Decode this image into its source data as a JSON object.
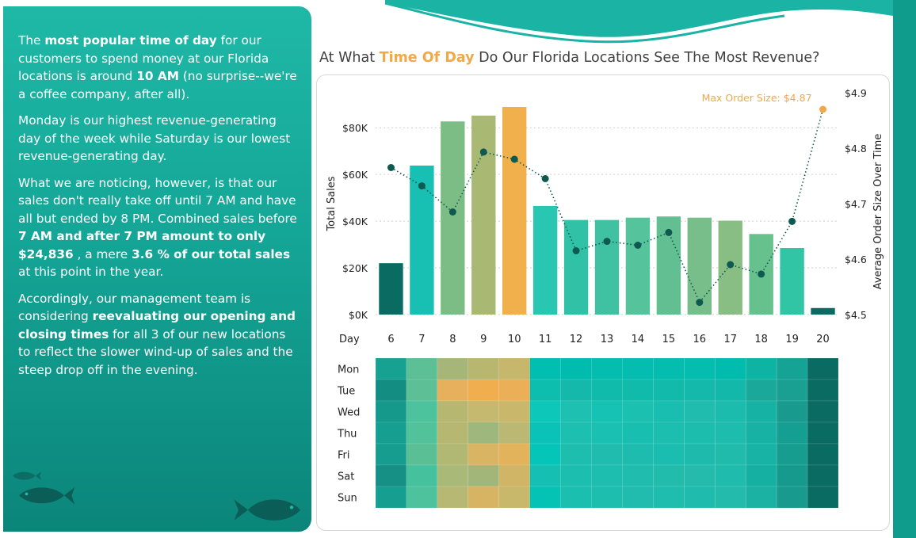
{
  "colors": {
    "panel_top": "#1fb8a6",
    "panel_bottom": "#0b857a",
    "highlight": "#f0a948",
    "teal_dark": "#0a6b63",
    "line": "#0f5a50"
  },
  "icons": [
    "fish-icon",
    "fish-icon",
    "fish-icon"
  ],
  "narrative": {
    "p1_pre": "The ",
    "p1_b1": "most popular time of day",
    "p1_mid": " for our customers to spend money at our Florida locations is around ",
    "p1_b2": " 10  AM",
    "p1_post": " (no surprise--we're a coffee company, after all).",
    "p2": " Monday  is our highest revenue-generating day of the week while Saturday  is our lowest revenue-generating day.",
    "p3_pre": "What we are noticing, however, is that our sales don't really take off until 7 AM and have all but ended by 8 PM. Combined sales before ",
    "p3_b1": "7 AM and after 7 PM amount to only  $24,836",
    "p3_mid": " , a mere ",
    "p3_b2": " 3.6 %  of our total sales",
    "p3_post": " at this point in the year.",
    "p4_pre": "Accordingly, our management team is considering ",
    "p4_b1": "reevaluating our opening and closing times",
    "p4_post": " for all 3 of our new locations to reflect the slower wind-up of sales and the steep drop off in the evening."
  },
  "title": {
    "pre": "At What ",
    "highlight": "Time Of Day",
    "post": " Do Our Florida Locations See The Most Revenue?"
  },
  "chart_data": {
    "type": "bar",
    "categories": [
      "6",
      "7",
      "8",
      "9",
      "10",
      "11",
      "12",
      "13",
      "14",
      "15",
      "16",
      "17",
      "18",
      "19",
      "20"
    ],
    "x_prefix_label": "Day",
    "series": [
      {
        "values": [
          22000,
          63800,
          82700,
          85200,
          88900,
          46500,
          40500,
          40500,
          41500,
          42000,
          41500,
          40200,
          34500,
          28500,
          2800
        ]
      },
      {
        "type": "line",
        "axis": "right",
        "values": [
          4.765,
          4.732,
          4.685,
          4.793,
          4.78,
          4.745,
          4.615,
          4.632,
          4.625,
          4.648,
          4.522,
          4.59,
          4.573,
          4.668,
          4.87
        ]
      }
    ],
    "bar_colors": [
      "#0a6b63",
      "#17c0b3",
      "#7cbd86",
      "#a9b873",
      "#f0b04c",
      "#29c7b1",
      "#31c1a6",
      "#3fc1a2",
      "#55c39c",
      "#62bf92",
      "#77be8a",
      "#88be84",
      "#66c18d",
      "#31c4a5",
      "#0a6b63"
    ],
    "ylabel": "Total Sales",
    "ylim": [
      0,
      95000
    ],
    "yticks": [
      "$0K",
      "$20K",
      "$40K",
      "$60K",
      "$80K"
    ],
    "y2label": "Average Order Size Over Time",
    "y2lim": [
      4.5,
      4.9
    ],
    "y2ticks": [
      "$4.5",
      "$4.6",
      "$4.7",
      "$4.8",
      "$4.9"
    ],
    "annotation": "Max Order Size: $4.87",
    "heatmap": {
      "rows": [
        "Mon",
        "Tue",
        "Wed",
        "Thu",
        "Fri",
        "Sat",
        "Sun"
      ],
      "colors": [
        [
          "#17a191",
          "#5cbf95",
          "#a6b679",
          "#b8b770",
          "#c7b76c",
          "#00beb0",
          "#00bcae",
          "#05bdaf",
          "#04bdb0",
          "#04bdae",
          "#05bdaf",
          "#00bcae",
          "#0db4a4",
          "#15a395",
          "#0a6b63"
        ],
        [
          "#138c81",
          "#5cbf95",
          "#e6b05c",
          "#f1ae4f",
          "#ebaf57",
          "#0dbdae",
          "#14b9ab",
          "#10bbac",
          "#10bbac",
          "#11baab",
          "#14b9ab",
          "#13b8aa",
          "#19a899",
          "#19a092",
          "#0a6b63"
        ],
        [
          "#15998b",
          "#4cc39d",
          "#b6b872",
          "#c4b96e",
          "#c9b86b",
          "#0dc7b9",
          "#1dc0b1",
          "#15c2b3",
          "#1bc0b1",
          "#1abeb0",
          "#20bcae",
          "#1bbcad",
          "#16b3a4",
          "#189b8e",
          "#0a6b63"
        ],
        [
          "#169e90",
          "#52c29b",
          "#b6b872",
          "#9eb77c",
          "#bab873",
          "#0ac3b6",
          "#1cbfb0",
          "#1ac0b1",
          "#18bfb1",
          "#1bbeaf",
          "#1dbdae",
          "#1ebcad",
          "#17b2a3",
          "#159f92",
          "#0a6b63"
        ],
        [
          "#179d8f",
          "#5bbf96",
          "#b1b873",
          "#d9b462",
          "#e3b35c",
          "#05c5b8",
          "#1ebeaf",
          "#20bdae",
          "#1dbcae",
          "#1abdaf",
          "#1ebbad",
          "#21bbac",
          "#18b3a4",
          "#169d90",
          "#0a6b63"
        ],
        [
          "#168f84",
          "#45c19d",
          "#a9b978",
          "#a3b67a",
          "#d0b566",
          "#15c0b2",
          "#1bbeaf",
          "#1dbdaf",
          "#20bdae",
          "#22bcad",
          "#24bbac",
          "#1fbbac",
          "#15b0a1",
          "#169a8d",
          "#0a6b63"
        ],
        [
          "#169e90",
          "#4dc29c",
          "#b7b873",
          "#d6b463",
          "#c8b86b",
          "#04c3b5",
          "#1abfb0",
          "#1ebeaf",
          "#21bcae",
          "#1ebdae",
          "#1fbcad",
          "#22bbac",
          "#1bb1a3",
          "#189b8e",
          "#0a6b63"
        ]
      ]
    }
  }
}
